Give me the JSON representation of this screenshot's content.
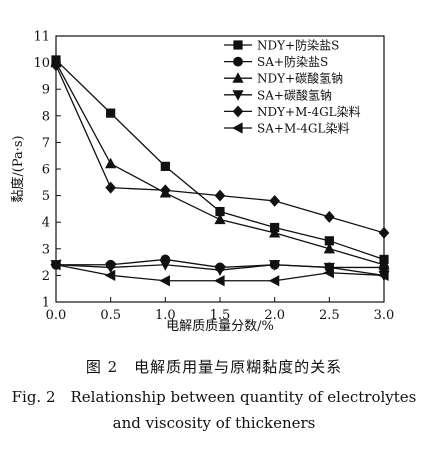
{
  "chart_data": {
    "type": "line",
    "xlabel": "电解质质量分数/%",
    "ylabel": "黏度/(Pa·s)",
    "xlim": [
      0.0,
      3.0
    ],
    "ylim": [
      1,
      11
    ],
    "x_ticks": [
      "0.0",
      "0.5",
      "1.0",
      "1.5",
      "2.0",
      "2.5",
      "3.0"
    ],
    "y_ticks": [
      "1",
      "2",
      "3",
      "4",
      "5",
      "6",
      "7",
      "8",
      "9",
      "10",
      "11"
    ],
    "grid": false,
    "legend_position": "top-right",
    "x": [
      0.0,
      0.5,
      1.0,
      1.5,
      2.0,
      2.5,
      3.0
    ],
    "series": [
      {
        "name": "NDY+防染盐S",
        "marker": "square",
        "values": [
          10.1,
          8.1,
          6.1,
          4.4,
          3.8,
          3.3,
          2.6
        ]
      },
      {
        "name": "SA+防染盐S",
        "marker": "circle",
        "values": [
          2.4,
          2.4,
          2.6,
          2.3,
          2.4,
          2.3,
          2.3
        ]
      },
      {
        "name": "NDY+碳酸氢钠",
        "marker": "triangle-up",
        "values": [
          10.0,
          6.2,
          5.1,
          4.1,
          3.6,
          3.0,
          2.4
        ]
      },
      {
        "name": "SA+碳酸氢钠",
        "marker": "triangle-down",
        "values": [
          2.4,
          2.3,
          2.4,
          2.2,
          2.4,
          2.3,
          2.0
        ]
      },
      {
        "name": "NDY+M-4GL染料",
        "marker": "diamond",
        "values": [
          9.9,
          5.3,
          5.2,
          5.0,
          4.8,
          4.2,
          3.6
        ]
      },
      {
        "name": "SA+M-4GL染料",
        "marker": "triangle-left",
        "values": [
          2.4,
          2.0,
          1.8,
          1.8,
          1.8,
          2.1,
          2.0
        ]
      }
    ]
  },
  "caption": {
    "cn": "图 2　电解质用量与原糊黏度的关系",
    "en_line1": "Fig. 2　Relationship between quantity of electrolytes",
    "en_line2": "and viscosity of thickeners"
  }
}
